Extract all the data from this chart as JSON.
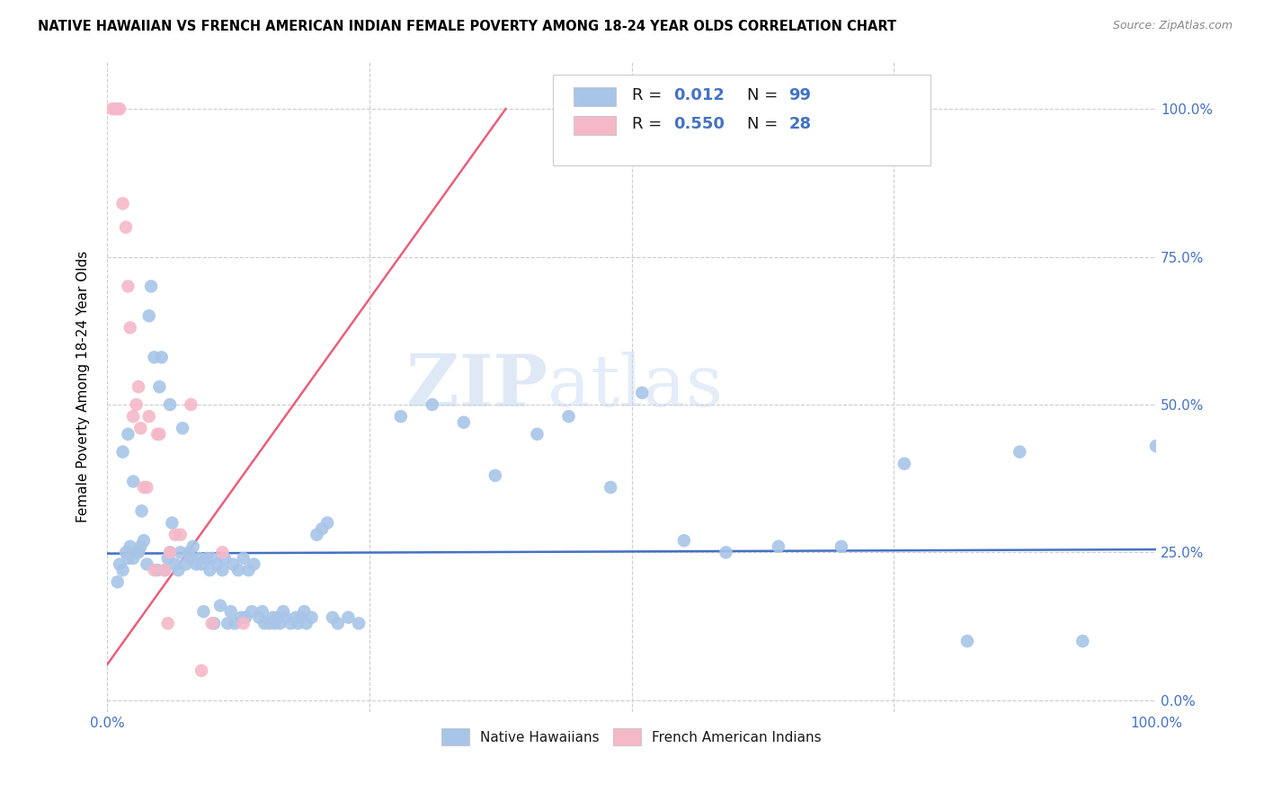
{
  "title": "NATIVE HAWAIIAN VS FRENCH AMERICAN INDIAN FEMALE POVERTY AMONG 18-24 YEAR OLDS CORRELATION CHART",
  "source": "Source: ZipAtlas.com",
  "ylabel": "Female Poverty Among 18-24 Year Olds",
  "xlim": [
    0.0,
    1.0
  ],
  "ylim": [
    -0.02,
    1.08
  ],
  "ytick_positions": [
    0.0,
    0.25,
    0.5,
    0.75,
    1.0
  ],
  "ytick_labels": [
    "0.0%",
    "25.0%",
    "50.0%",
    "75.0%",
    "100.0%"
  ],
  "xtick_positions": [
    0.0,
    1.0
  ],
  "xtick_labels": [
    "0.0%",
    "100.0%"
  ],
  "watermark_zip": "ZIP",
  "watermark_atlas": "atlas",
  "blue_color": "#a8c5e8",
  "pink_color": "#f5b8c8",
  "blue_line_color": "#4472c4",
  "pink_line_color": "#e8607a",
  "tick_color": "#4472c4",
  "grid_color": "#cccccc",
  "native_hawaiian_x": [
    0.01,
    0.012,
    0.015,
    0.015,
    0.018,
    0.02,
    0.02,
    0.022,
    0.025,
    0.025,
    0.028,
    0.03,
    0.032,
    0.033,
    0.035,
    0.038,
    0.04,
    0.042,
    0.045,
    0.048,
    0.05,
    0.052,
    0.055,
    0.058,
    0.06,
    0.06,
    0.062,
    0.065,
    0.068,
    0.07,
    0.072,
    0.075,
    0.078,
    0.08,
    0.082,
    0.085,
    0.088,
    0.09,
    0.092,
    0.095,
    0.098,
    0.1,
    0.102,
    0.105,
    0.108,
    0.11,
    0.112,
    0.115,
    0.118,
    0.12,
    0.122,
    0.125,
    0.128,
    0.13,
    0.132,
    0.135,
    0.138,
    0.14,
    0.145,
    0.148,
    0.15,
    0.155,
    0.158,
    0.16,
    0.162,
    0.165,
    0.168,
    0.17,
    0.175,
    0.18,
    0.182,
    0.185,
    0.188,
    0.19,
    0.195,
    0.2,
    0.205,
    0.21,
    0.215,
    0.22,
    0.23,
    0.24,
    0.28,
    0.31,
    0.34,
    0.37,
    0.41,
    0.44,
    0.48,
    0.51,
    0.55,
    0.59,
    0.64,
    0.7,
    0.76,
    0.82,
    0.87,
    0.93,
    1.0
  ],
  "native_hawaiian_y": [
    0.2,
    0.23,
    0.22,
    0.42,
    0.25,
    0.24,
    0.45,
    0.26,
    0.24,
    0.37,
    0.25,
    0.25,
    0.26,
    0.32,
    0.27,
    0.23,
    0.65,
    0.7,
    0.58,
    0.22,
    0.53,
    0.58,
    0.22,
    0.24,
    0.25,
    0.5,
    0.3,
    0.23,
    0.22,
    0.25,
    0.46,
    0.23,
    0.25,
    0.24,
    0.26,
    0.23,
    0.24,
    0.23,
    0.15,
    0.24,
    0.22,
    0.24,
    0.13,
    0.23,
    0.16,
    0.22,
    0.24,
    0.13,
    0.15,
    0.23,
    0.13,
    0.22,
    0.14,
    0.24,
    0.14,
    0.22,
    0.15,
    0.23,
    0.14,
    0.15,
    0.13,
    0.13,
    0.14,
    0.13,
    0.14,
    0.13,
    0.15,
    0.14,
    0.13,
    0.14,
    0.13,
    0.14,
    0.15,
    0.13,
    0.14,
    0.28,
    0.29,
    0.3,
    0.14,
    0.13,
    0.14,
    0.13,
    0.48,
    0.5,
    0.47,
    0.38,
    0.45,
    0.48,
    0.36,
    0.52,
    0.27,
    0.25,
    0.26,
    0.26,
    0.4,
    0.1,
    0.42,
    0.1,
    0.43
  ],
  "french_x": [
    0.005,
    0.008,
    0.01,
    0.012,
    0.015,
    0.018,
    0.02,
    0.022,
    0.025,
    0.028,
    0.03,
    0.032,
    0.035,
    0.038,
    0.04,
    0.045,
    0.048,
    0.05,
    0.055,
    0.058,
    0.06,
    0.065,
    0.07,
    0.08,
    0.09,
    0.1,
    0.11,
    0.13
  ],
  "french_y": [
    1.0,
    1.0,
    1.0,
    1.0,
    0.84,
    0.8,
    0.7,
    0.63,
    0.48,
    0.5,
    0.53,
    0.46,
    0.36,
    0.36,
    0.48,
    0.22,
    0.45,
    0.45,
    0.22,
    0.13,
    0.25,
    0.28,
    0.28,
    0.5,
    0.05,
    0.13,
    0.25,
    0.13
  ],
  "blue_line_x": [
    0.0,
    1.0
  ],
  "blue_line_y": [
    0.248,
    0.255
  ],
  "pink_line_x": [
    0.0,
    0.38
  ],
  "pink_line_y": [
    0.06,
    1.0
  ]
}
